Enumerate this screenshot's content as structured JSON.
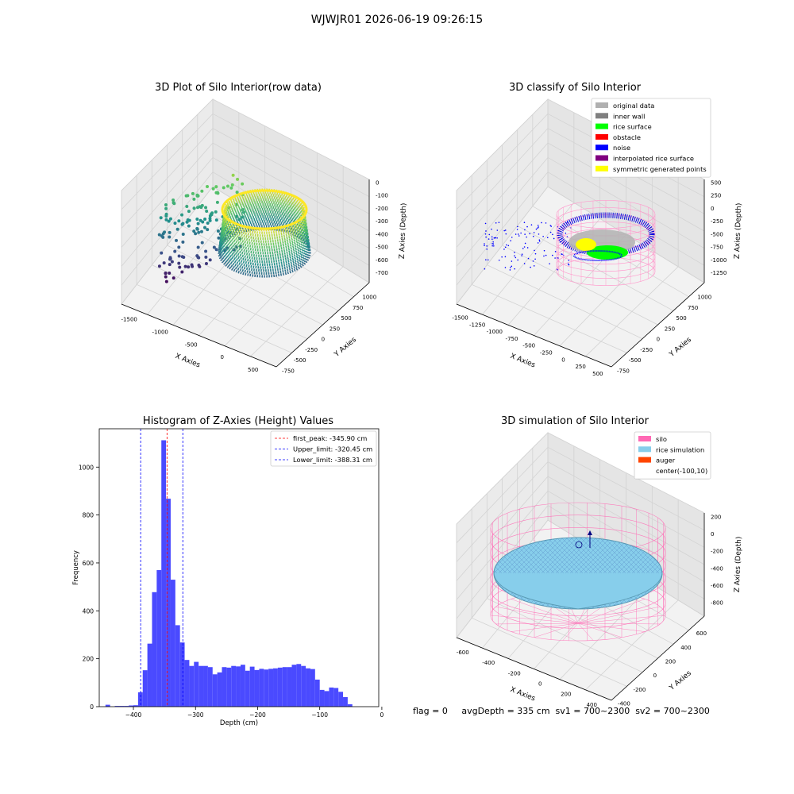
{
  "suptitle": "WJWJR01 2026-06-19 09:26:15",
  "footer": "flag = 0     avgDepth = 335 cm  sv1 = 700~2300  sv2 = 700~2300",
  "panel_titles": {
    "raw": "3D Plot of Silo Interior(row data)",
    "classify": "3D classify of Silo Interior",
    "hist": "Histogram of Z-Axies (Height) Values",
    "sim": "3D simulation of Silo Interior"
  },
  "chart_data": [
    {
      "type": "scatter",
      "title": "3D Plot of Silo Interior(row data)",
      "xlabel": "X Axies",
      "ylabel": "Y Axies",
      "zlabel": "Z Axies (Depth)",
      "x_ticks": [
        "-1500",
        "-1000",
        "-500",
        "0",
        "500"
      ],
      "y_ticks": [
        "-750",
        "-500",
        "-250",
        "0",
        "250",
        "500",
        "750",
        "1000"
      ],
      "z_ticks": [
        "0",
        "-100",
        "-200",
        "-300",
        "-400",
        "-500",
        "-600",
        "-700"
      ],
      "colormap": "viridis"
    },
    {
      "type": "scatter",
      "title": "3D classify of Silo Interior",
      "xlabel": "X Axies",
      "ylabel": "Y Axies",
      "zlabel": "Z Axies (Depth)",
      "x_ticks": [
        "-1500",
        "-1250",
        "-1000",
        "-750",
        "-500",
        "-250",
        "0",
        "250",
        "500"
      ],
      "y_ticks": [
        "-750",
        "-500",
        "-250",
        "0",
        "250",
        "500",
        "750",
        "1000"
      ],
      "z_ticks": [
        "500",
        "250",
        "0",
        "-250",
        "-500",
        "-750",
        "-1000",
        "-1250"
      ],
      "legend": [
        {
          "label": "original data",
          "color": "#b0b0b0"
        },
        {
          "label": "inner wall",
          "color": "#808080"
        },
        {
          "label": "rice surface",
          "color": "#00ff00"
        },
        {
          "label": "obstacle",
          "color": "#ff0000"
        },
        {
          "label": "noise",
          "color": "#0000ff"
        },
        {
          "label": "interpolated rice surface",
          "color": "#800080"
        },
        {
          "label": "symmetric generated points",
          "color": "#ffff00"
        }
      ],
      "legend_loc": "upper right"
    },
    {
      "type": "bar",
      "title": "Histogram of Z-Axies (Height) Values",
      "xlabel": "Depth (cm)",
      "ylabel": "Frequency",
      "xlim": [
        -455,
        -5
      ],
      "ylim": [
        0,
        1160
      ],
      "x_ticks": [
        -400,
        -300,
        -200,
        -100,
        0
      ],
      "y_ticks": [
        0,
        200,
        400,
        600,
        800,
        1000
      ],
      "bar_color": "#4a4aff",
      "bin_width": 7.5,
      "bin_starts": [
        -445,
        -437.5,
        -430,
        -422.5,
        -415,
        -407.5,
        -400,
        -392.5,
        -385,
        -377.5,
        -370,
        -362.5,
        -355,
        -347.5,
        -340,
        -332.5,
        -325,
        -317.5,
        -310,
        -302.5,
        -295,
        -287.5,
        -280,
        -272.5,
        -265,
        -257.5,
        -250,
        -242.5,
        -235,
        -227.5,
        -220,
        -212.5,
        -205,
        -197.5,
        -190,
        -182.5,
        -175,
        -167.5,
        -160,
        -152.5,
        -145,
        -137.5,
        -130,
        -122.5,
        -115,
        -107.5,
        -100,
        -92.5,
        -85,
        -77.5,
        -70,
        -62.5,
        -55,
        -47.5,
        -40,
        -32.5,
        -25,
        -17.5
      ],
      "values": [
        8,
        0,
        3,
        3,
        3,
        5,
        6,
        60,
        152,
        263,
        478,
        570,
        1112,
        868,
        530,
        340,
        268,
        195,
        170,
        187,
        170,
        170,
        165,
        135,
        143,
        165,
        163,
        170,
        168,
        175,
        150,
        167,
        153,
        158,
        155,
        158,
        160,
        163,
        165,
        165,
        175,
        178,
        170,
        160,
        157,
        113,
        70,
        65,
        80,
        78,
        62,
        40,
        10,
        0,
        0,
        0,
        0,
        0
      ],
      "reference_lines": [
        {
          "label": "first_peak: -345.90 cm",
          "x": -345.9,
          "color": "#ff0000"
        },
        {
          "label": "Upper_limit: -320.45 cm",
          "x": -320.45,
          "color": "#0000ff"
        },
        {
          "label": "Lower_limit: -388.31 cm",
          "x": -388.31,
          "color": "#0000ff"
        }
      ],
      "legend_loc": "upper right"
    },
    {
      "type": "scatter",
      "title": "3D simulation of Silo Interior",
      "xlabel": "X Axies",
      "ylabel": "Y Axies",
      "zlabel": "Z Axies (Depth)",
      "x_ticks": [
        "-600",
        "-400",
        "-200",
        "0",
        "200",
        "400"
      ],
      "y_ticks": [
        "-400",
        "-200",
        "0",
        "200",
        "400",
        "600"
      ],
      "z_ticks": [
        "200",
        "0",
        "-200",
        "-400",
        "-600",
        "-800"
      ],
      "legend": [
        {
          "label": "silo",
          "color": "#ff69b4"
        },
        {
          "label": "rice simulation",
          "color": "#87ceeb"
        },
        {
          "label": "auger",
          "color": "#ff4500"
        },
        {
          "label": "center(-100,10)",
          "color": ""
        }
      ],
      "legend_loc": "upper right"
    }
  ]
}
